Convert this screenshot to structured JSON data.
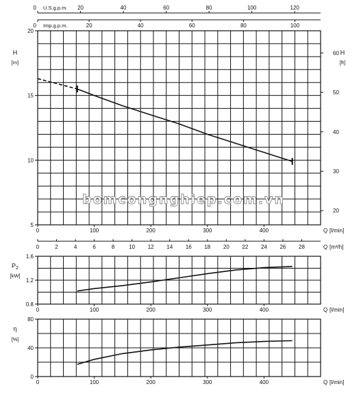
{
  "watermark": "bomcongnghiep.com.vn",
  "chart_data": [
    {
      "type": "line",
      "panel": "head",
      "ylabel": "H",
      "ylabel_unit": "[m]",
      "y2label": "H",
      "y2label_unit": "[ft]",
      "ylim": [
        5,
        20
      ],
      "yticks": [
        5,
        10,
        15,
        20
      ],
      "y2ticks": [
        20,
        30,
        40,
        50,
        60
      ],
      "xlim": [
        0,
        500
      ],
      "xticks": [
        0,
        100,
        200,
        300,
        400
      ],
      "xlabel": "Q",
      "xlabel_unit": "[l/min]",
      "top_axis_1": {
        "label": "U.S.g.p.m.",
        "ticks": [
          0,
          20,
          40,
          60,
          80,
          100,
          120
        ]
      },
      "top_axis_2": {
        "label": "Imp.g.p.m.",
        "ticks": [
          0,
          20,
          40,
          60,
          80,
          100
        ]
      },
      "m3h_axis": {
        "label": "Q",
        "unit": "[m³/h]",
        "ticks": [
          0,
          2,
          4,
          6,
          8,
          10,
          12,
          14,
          16,
          18,
          20,
          22,
          24,
          26,
          28
        ]
      },
      "grid": true,
      "dashed_segment": {
        "x": [
          0,
          70
        ],
        "y": [
          16.3,
          15.5
        ]
      },
      "series": [
        {
          "x": [
            70,
            100,
            150,
            200,
            250,
            300,
            350,
            400,
            450
          ],
          "y": [
            15.5,
            15.0,
            14.2,
            13.5,
            12.8,
            12.0,
            11.3,
            10.6,
            9.9
          ]
        }
      ]
    },
    {
      "type": "line",
      "panel": "power",
      "ylabel": "P",
      "ylabel_sub": "2",
      "ylabel_unit": "[kW]",
      "ylim": [
        0.8,
        1.6
      ],
      "yticks": [
        0.8,
        1.2,
        1.6
      ],
      "xlim": [
        0,
        500
      ],
      "xticks": [
        0,
        100,
        200,
        300,
        400
      ],
      "xlabel": "Q",
      "xlabel_unit": "[l/min]",
      "grid": true,
      "series": [
        {
          "x": [
            70,
            100,
            150,
            200,
            250,
            300,
            350,
            400,
            450
          ],
          "y": [
            1.02,
            1.06,
            1.11,
            1.17,
            1.24,
            1.31,
            1.37,
            1.41,
            1.43
          ]
        }
      ]
    },
    {
      "type": "line",
      "panel": "efficiency",
      "ylabel": "η",
      "ylabel_unit": "[%]",
      "ylim": [
        0,
        80
      ],
      "yticks": [
        0,
        40,
        80
      ],
      "xlim": [
        0,
        500
      ],
      "xticks": [
        0,
        100,
        200,
        300,
        400
      ],
      "xlabel": "Q",
      "xlabel_unit": "[l/min]",
      "grid": true,
      "series": [
        {
          "x": [
            70,
            100,
            150,
            200,
            250,
            300,
            350,
            400,
            450
          ],
          "y": [
            17,
            24,
            32,
            37,
            41,
            44,
            47,
            49,
            50
          ]
        }
      ]
    }
  ]
}
